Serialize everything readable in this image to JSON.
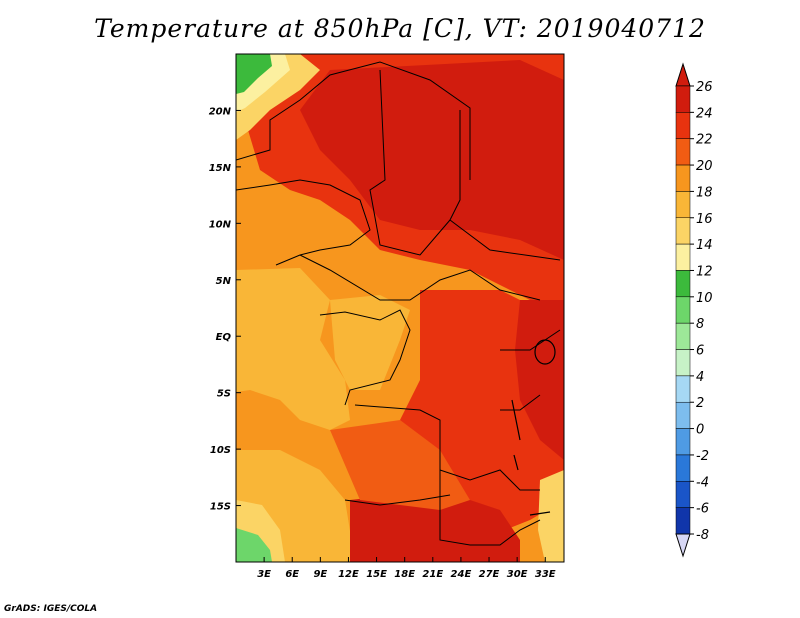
{
  "chart_data": {
    "type": "heatmap",
    "title": "Temperature at 850hPa [C], VT: 2019040712",
    "xlabel": "",
    "ylabel": "",
    "x_ticks": [
      "3E",
      "6E",
      "9E",
      "12E",
      "15E",
      "18E",
      "21E",
      "24E",
      "27E",
      "30E",
      "33E"
    ],
    "x_values": [
      3,
      6,
      9,
      12,
      15,
      18,
      21,
      24,
      27,
      30,
      33
    ],
    "y_ticks": [
      "20N",
      "15N",
      "10N",
      "5N",
      "EQ",
      "5S",
      "10S",
      "15S"
    ],
    "y_values": [
      20,
      15,
      10,
      5,
      0,
      -5,
      -10,
      -15
    ],
    "xlim": [
      0,
      35
    ],
    "ylim": [
      -20,
      25
    ],
    "colorbar": {
      "labels": [
        "26",
        "24",
        "22",
        "20",
        "18",
        "16",
        "14",
        "12",
        "10",
        "8",
        "6",
        "4",
        "2",
        "0",
        "-2",
        "-4",
        "-6",
        "-8"
      ],
      "values": [
        26,
        24,
        22,
        20,
        18,
        16,
        14,
        12,
        10,
        8,
        6,
        4,
        2,
        0,
        -2,
        -4,
        -6,
        -8
      ],
      "colors": [
        "#d11c0e",
        "#e8330f",
        "#f15c13",
        "#f7961e",
        "#f9b637",
        "#fbd465",
        "#fcf0a0",
        "#3cba3c",
        "#6dd66a",
        "#9de898",
        "#c7f2c7",
        "#a6d8f4",
        "#7dbdee",
        "#4f9be4",
        "#2a78d9",
        "#1a55c8",
        "#1035aa",
        "#0a1a7d"
      ],
      "over_color": "#d11c0e",
      "under_color": "#d7d7f5"
    },
    "grid": false,
    "legend": "colorbar-right"
  },
  "footer": {
    "credit": "GrADS: IGES/COLA"
  }
}
